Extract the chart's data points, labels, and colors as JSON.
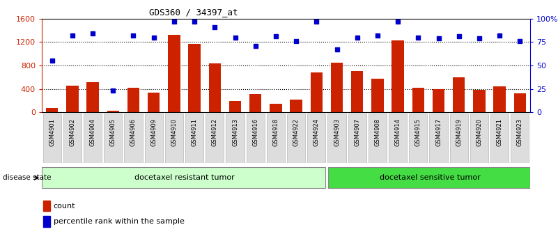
{
  "title": "GDS360 / 34397_at",
  "samples": [
    "GSM4901",
    "GSM4902",
    "GSM4904",
    "GSM4905",
    "GSM4906",
    "GSM4909",
    "GSM4910",
    "GSM4911",
    "GSM4912",
    "GSM4913",
    "GSM4916",
    "GSM4918",
    "GSM4922",
    "GSM4924",
    "GSM4903",
    "GSM4907",
    "GSM4908",
    "GSM4914",
    "GSM4915",
    "GSM4917",
    "GSM4919",
    "GSM4920",
    "GSM4921",
    "GSM4923"
  ],
  "counts": [
    75,
    460,
    520,
    30,
    415,
    335,
    1320,
    1170,
    840,
    195,
    310,
    150,
    215,
    680,
    850,
    700,
    580,
    1230,
    415,
    395,
    600,
    380,
    440,
    330
  ],
  "percentiles": [
    55,
    82,
    84,
    23,
    82,
    80,
    97,
    97,
    91,
    80,
    71,
    81,
    76,
    97,
    67,
    80,
    82,
    97,
    80,
    79,
    81,
    79,
    82,
    76
  ],
  "bar_color": "#cc2200",
  "dot_color": "#0000cc",
  "resistant_group": "docetaxel resistant tumor",
  "sensitive_group": "docetaxel sensitive tumor",
  "n_resistant": 14,
  "n_sensitive": 10,
  "ylim_left": [
    0,
    1600
  ],
  "ylim_right": [
    0,
    100
  ],
  "yticks_left": [
    0,
    400,
    800,
    1200,
    1600
  ],
  "yticks_right": [
    0,
    25,
    50,
    75,
    100
  ],
  "ytick_labels_left": [
    "0",
    "400",
    "800",
    "1200",
    "1600"
  ],
  "ytick_labels_right": [
    "0",
    "25",
    "50",
    "75",
    "100%"
  ],
  "disease_state_label": "disease state",
  "legend_count": "count",
  "legend_percentile": "percentile rank within the sample",
  "bg_color": "#ffffff",
  "resistant_color": "#ccffcc",
  "sensitive_color": "#44dd44",
  "band_border_color": "#888888"
}
